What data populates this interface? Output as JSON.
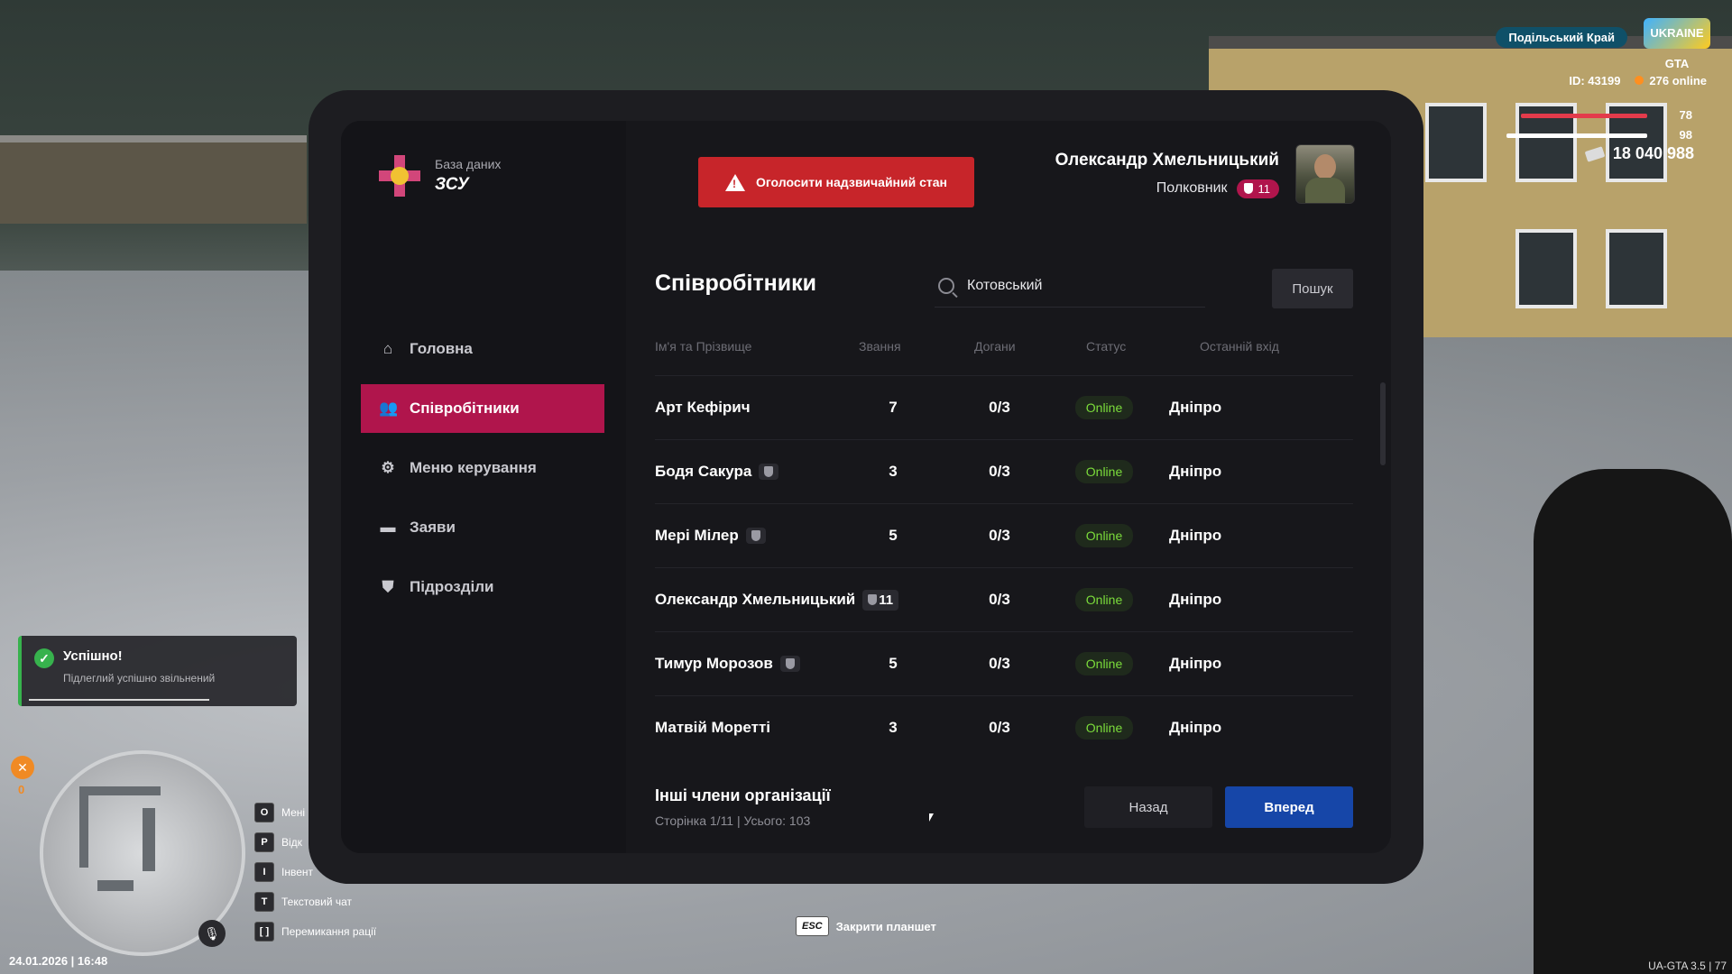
{
  "hud": {
    "server": "Подільський Край",
    "logo_text": "UKRAINE GTA",
    "player_id": "ID: 43199",
    "online": "276 online",
    "health": "78",
    "armor": "98",
    "money": "18 040 988",
    "hunger_value": "0",
    "datetime": "24.01.2026 | 16:48",
    "version": "UA-GTA 3.5 | 77",
    "keys": [
      {
        "key": "O",
        "label": "Мені"
      },
      {
        "key": "P",
        "label": "Відк"
      },
      {
        "key": "I",
        "label": "Інвент"
      },
      {
        "key": "T",
        "label": "Текстовий чат"
      },
      {
        "key": "[ ]",
        "label": "Перемикання рації"
      }
    ],
    "esc_key": "ESC",
    "esc_label": "Закрити планшет"
  },
  "notification": {
    "title": "Успішно!",
    "message": "Підлеглий успішно звільнений",
    "color": "#37b24d"
  },
  "brand": {
    "subtitle": "База даних",
    "title": "ЗСУ"
  },
  "nav": [
    {
      "label": "Головна",
      "icon": "home-icon"
    },
    {
      "label": "Співробітники",
      "icon": "people-icon",
      "active": true
    },
    {
      "label": "Меню керування",
      "icon": "gear-icon"
    },
    {
      "label": "Заяви",
      "icon": "folder-icon"
    },
    {
      "label": "Підрозділи",
      "icon": "shield-icon"
    }
  ],
  "alert_button": "Оголосити надзвичайний стан",
  "user": {
    "name": "Олександр Хмельницький",
    "rank": "Полковник",
    "rank_level": "11"
  },
  "page": {
    "title": "Співробітники",
    "search_value": "Котовський",
    "search_button": "Пошук"
  },
  "table": {
    "headers": [
      "Ім'я та Прізвище",
      "Звання",
      "Догани",
      "Статус",
      "Останній вхід"
    ],
    "rows": [
      {
        "name": "Арт Кефірич",
        "tag": "",
        "rank": "7",
        "warnings": "0/3",
        "status": "Online",
        "last": "Дніпро"
      },
      {
        "name": "Бодя Сакура",
        "tag": " ",
        "rank": "3",
        "warnings": "0/3",
        "status": "Online",
        "last": "Дніпро"
      },
      {
        "name": "Мері Мілер",
        "tag": " ",
        "rank": "5",
        "warnings": "0/3",
        "status": "Online",
        "last": "Дніпро"
      },
      {
        "name": "Олександр Хмельницький",
        "tag": "11",
        "rank": "",
        "warnings": "0/3",
        "status": "Online",
        "last": "Дніпро"
      },
      {
        "name": "Тимур Морозов",
        "tag": " ",
        "rank": "5",
        "warnings": "0/3",
        "status": "Online",
        "last": "Дніпро"
      },
      {
        "name": "Матвій Моретті",
        "tag": "",
        "rank": "3",
        "warnings": "0/3",
        "status": "Online",
        "last": "Дніпро"
      }
    ]
  },
  "footer": {
    "title": "Інші члени організації",
    "subtitle": "Сторінка 1/11 | Усього: 103",
    "prev": "Назад",
    "next": "Вперед"
  },
  "colors": {
    "accent": "#b0154c",
    "alert": "#c7252a",
    "primary": "#1646a8",
    "online": "#7bdc3b"
  }
}
